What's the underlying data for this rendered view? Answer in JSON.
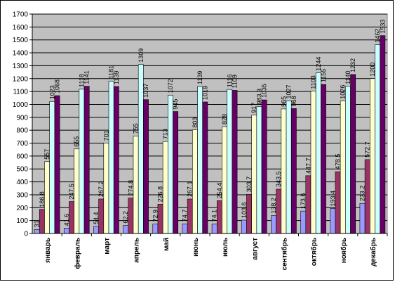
{
  "chart_data": {
    "type": "bar",
    "title": "",
    "xlabel": "",
    "ylabel": "",
    "ylim": [
      0,
      1700
    ],
    "ytick_step": 100,
    "grid": true,
    "legend": "none",
    "categories": [
      "январь",
      "февраль",
      "март",
      "апрель",
      "май",
      "июнь",
      "июль",
      "август",
      "сентябрь",
      "октябрь",
      "ноябрь",
      "декабрь"
    ],
    "series": [
      {
        "color": "#9999ff",
        "values": [
          31,
          41.6,
          54.4,
          62.2,
          72.9,
          74.7,
          74.1,
          103.6,
          138.2,
          173.6,
          193.4,
          233.2
        ],
        "labels": [
          "31",
          "41.6",
          "54.4",
          "62.2",
          "72.9",
          "74.7",
          "74.1",
          "103.6",
          "138.2",
          "173.6",
          "193.4",
          "233.2"
        ]
      },
      {
        "color": "#993366",
        "values": [
          186.8,
          247.5,
          267.2,
          274.8,
          226.8,
          267.1,
          254.4,
          303.7,
          343.5,
          447.7,
          478.5,
          572.7
        ],
        "labels": [
          "186.8",
          "247.5",
          "267.2",
          "274.8",
          "226.8",
          "267.1",
          "254.4",
          "303.7",
          "343.5",
          "447.7",
          "478.5",
          "572.7"
        ]
      },
      {
        "color": "#ffffcc",
        "values": [
          557,
          655,
          701,
          755,
          713,
          803,
          828,
          917,
          965,
          1103,
          1026,
          1200
        ],
        "labels": [
          "557",
          "655",
          "701",
          "755",
          "713",
          "803",
          "828",
          "917",
          "965",
          "1103",
          "1026",
          "1200"
        ]
      },
      {
        "color": "#ccffff",
        "values": [
          1023,
          1118,
          1181,
          1309,
          1072,
          1139,
          1116,
          983.3,
          1027,
          1244,
          1140,
          1462
        ],
        "labels": [
          "1023",
          "1118",
          "1181",
          "1309",
          "1072",
          "1139",
          "1116",
          "983.3",
          "1027",
          "1244",
          "1140",
          "1462"
        ]
      },
      {
        "color": "#660066",
        "values": [
          1068,
          1141,
          1139,
          1037,
          945,
          1019,
          1109,
          1035,
          968,
          1155,
          1232,
          1533
        ],
        "labels": [
          "1068",
          "1141",
          "1139",
          "1037",
          "945",
          "1019",
          "1109",
          "1035",
          "968",
          "1155",
          "1232",
          "1533"
        ]
      }
    ]
  }
}
